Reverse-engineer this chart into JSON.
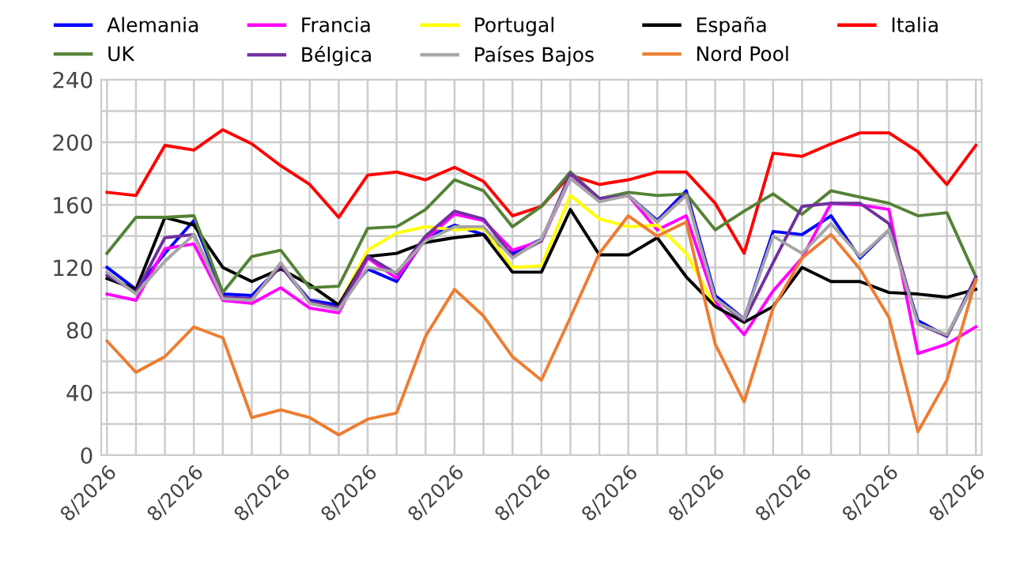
{
  "chart_data": {
    "type": "line",
    "categories": [
      "8/2026",
      null,
      null,
      "8/2026",
      null,
      null,
      "8/2026",
      null,
      null,
      "8/2026",
      null,
      null,
      "8/2026",
      null,
      null,
      "8/2026",
      null,
      null,
      "8/2026",
      null,
      null,
      "8/2026",
      null,
      null,
      "8/2026",
      null,
      null,
      "8/2026",
      null,
      null,
      "8/2026"
    ],
    "ylim": [
      0,
      240
    ],
    "yticks": [
      0,
      {
        "value": 20,
        "label": null
      },
      40,
      {
        "value": 60,
        "label": null
      },
      80,
      {
        "value": 100,
        "label": null
      },
      120,
      {
        "value": 140,
        "label": null
      },
      160,
      {
        "value": 180,
        "label": null
      },
      200,
      {
        "value": 220,
        "label": null
      },
      240
    ],
    "grid": true,
    "legend": "top",
    "marker": "none",
    "line_style": "solid",
    "series": [
      {
        "name": "Alemania",
        "color": "#0000ff",
        "values": [
          120,
          106,
          129,
          150,
          103,
          102,
          121,
          99,
          96,
          119,
          111,
          139,
          147,
          141,
          129,
          138,
          177,
          163,
          166,
          150,
          169,
          102,
          87,
          143,
          141,
          153,
          126,
          144,
          86,
          76,
          112
        ]
      },
      {
        "name": "Francia",
        "color": "#ff00ff",
        "values": [
          103,
          99,
          132,
          135,
          99,
          97,
          107,
          94,
          91,
          126,
          113,
          138,
          154,
          150,
          131,
          137,
          177,
          164,
          166,
          144,
          153,
          98,
          77,
          105,
          126,
          161,
          160,
          157,
          65,
          71,
          82
        ]
      },
      {
        "name": "Portugal",
        "color": "#ffff00",
        "values": [
          null,
          null,
          null,
          null,
          null,
          null,
          null,
          null,
          96,
          131,
          142,
          146,
          144,
          145,
          120,
          121,
          166,
          151,
          146,
          147,
          129,
          95,
          null,
          null,
          null,
          null,
          null,
          null,
          null,
          null,
          null
        ]
      },
      {
        "name": "España",
        "color": "#000000",
        "values": [
          113,
          106,
          152,
          147,
          120,
          111,
          119,
          109,
          96,
          127,
          129,
          136,
          139,
          141,
          117,
          117,
          157,
          128,
          128,
          139,
          114,
          95,
          85,
          95,
          120,
          111,
          111,
          104,
          103,
          101,
          106
        ]
      },
      {
        "name": "Italia",
        "color": "#ff0000",
        "values": [
          168,
          166,
          198,
          195,
          208,
          199,
          185,
          173,
          152,
          179,
          181,
          176,
          184,
          175,
          153,
          159,
          179,
          173,
          176,
          181,
          181,
          161,
          129,
          193,
          191,
          199,
          206,
          206,
          194,
          173,
          198
        ]
      },
      {
        "name": "UK",
        "color": "#548235",
        "values": [
          129,
          152,
          152,
          153,
          104,
          127,
          131,
          107,
          108,
          145,
          146,
          157,
          176,
          169,
          146,
          159,
          181,
          164,
          168,
          166,
          167,
          144,
          156,
          167,
          154,
          169,
          165,
          161,
          153,
          155,
          114
        ]
      },
      {
        "name": "Bélgica",
        "color": "#7030a0",
        "values": [
          115,
          104,
          139,
          141,
          101,
          100,
          121,
          98,
          94,
          127,
          116,
          140,
          156,
          151,
          127,
          137,
          180,
          164,
          166,
          149,
          167,
          100,
          86,
          123,
          159,
          161,
          161,
          148,
          84,
          76,
          114
        ]
      },
      {
        "name": "Países Bajos",
        "color": "#a5a5a5",
        "values": [
          117,
          103,
          124,
          141,
          100,
          99,
          123,
          97,
          93,
          120,
          117,
          137,
          146,
          146,
          126,
          138,
          177,
          162,
          166,
          149,
          166,
          100,
          87,
          140,
          129,
          148,
          127,
          144,
          84,
          77,
          111
        ]
      },
      {
        "name": "Nord Pool",
        "color": "#ed7d31",
        "values": [
          73,
          53,
          63,
          82,
          75,
          24,
          29,
          24,
          13,
          23,
          27,
          76,
          106,
          89,
          63,
          48,
          88,
          129,
          153,
          140,
          149,
          71,
          34,
          94,
          126,
          141,
          119,
          88,
          15,
          48,
          112
        ]
      }
    ]
  }
}
